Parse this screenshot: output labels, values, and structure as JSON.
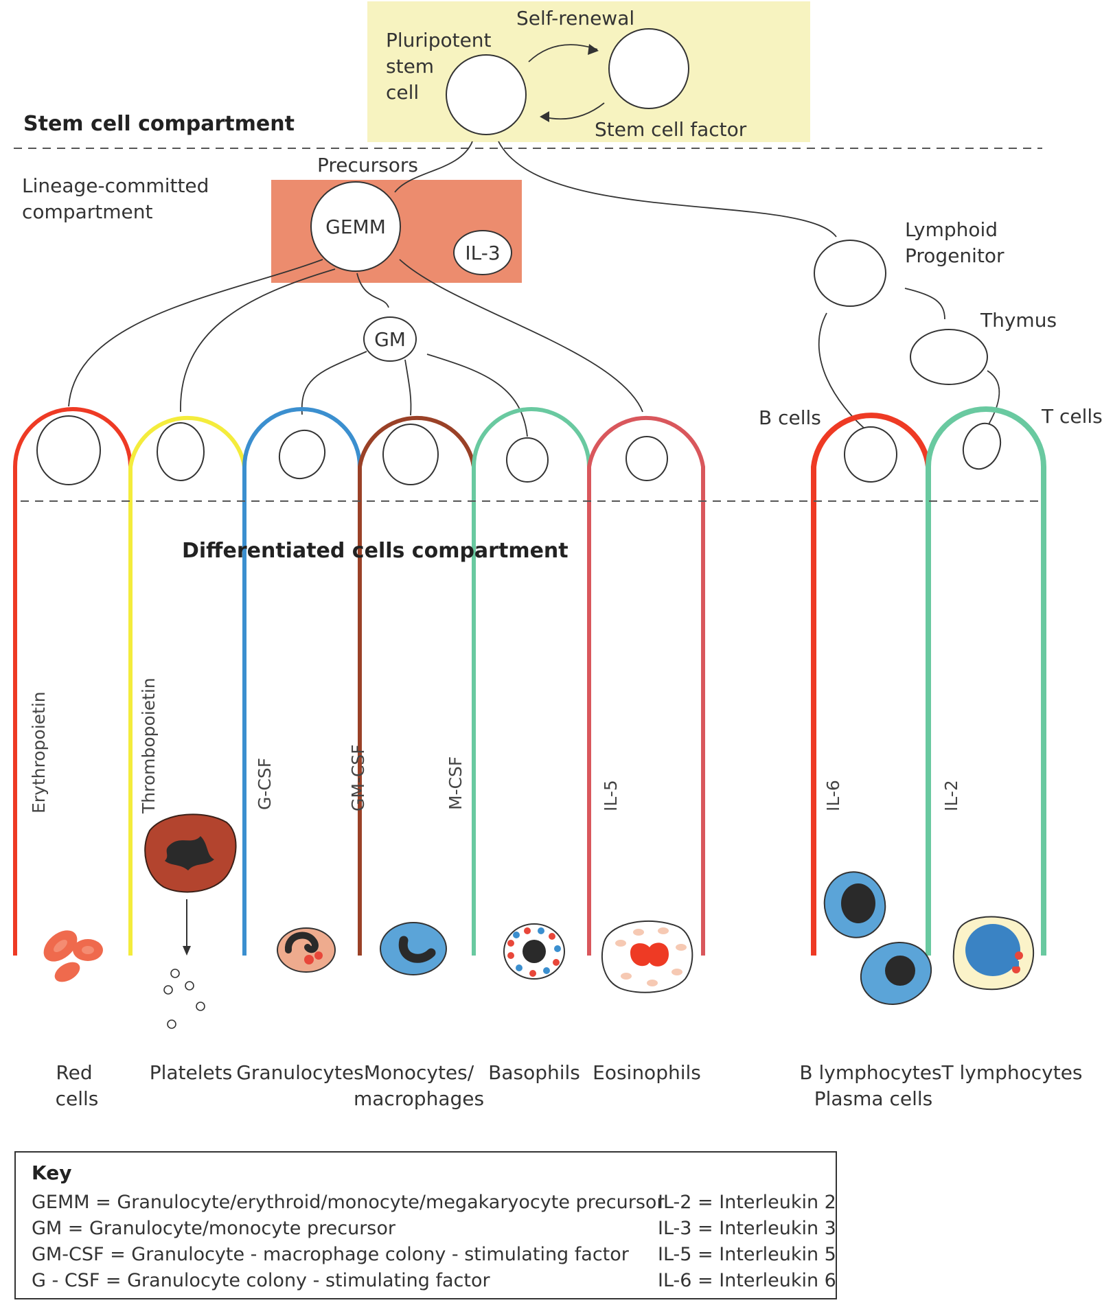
{
  "compartments": {
    "stem": "Stem cell compartment",
    "lineage": [
      "Lineage-committed",
      "compartment"
    ],
    "differentiated": "Differentiated cells compartment"
  },
  "stem_box": {
    "pluripotent": [
      "Pluripotent",
      "stem",
      "cell"
    ],
    "self_renewal": "Self-renewal",
    "stem_cell_factor": "Stem cell factor"
  },
  "precursors": {
    "label": "Precursors",
    "gemm": "GEMM",
    "il3": "IL-3",
    "gm": "GM"
  },
  "lymphoid": {
    "progenitor": [
      "Lymphoid",
      "Progenitor"
    ],
    "thymus": "Thymus",
    "b_cells": "B cells",
    "t_cells": "T cells"
  },
  "factors": [
    "Erythropoietin",
    "Thrombopoietin",
    "G-CSF",
    "GM-CSF",
    "M-CSF",
    "IL-5",
    "IL-6",
    "IL-2"
  ],
  "outputs": {
    "red_cells": [
      "Red",
      "cells"
    ],
    "platelets": "Platelets",
    "granulocytes": "Granulocytes",
    "monocytes": [
      "Monocytes/",
      "macrophages"
    ],
    "basophils": "Basophils",
    "eosinophils": "Eosinophils",
    "b_lymphocytes": [
      "B lymphocytes",
      "Plasma cells"
    ],
    "t_lymphocytes": "T lymphocytes"
  },
  "key": {
    "title": "Key",
    "left": [
      "GEMM = Granulocyte/erythroid/monocyte/megakaryocyte precursor",
      "GM = Granulocyte/monocyte precursor",
      "GM-CSF = Granulocyte - macrophage colony - stimulating factor",
      "G - CSF = Granulocyte colony - stimulating factor"
    ],
    "right": [
      "IL-2 = Interleukin 2",
      "IL-3 = Interleukin 3",
      "IL-5 = Interleukin 5",
      "IL-6 = Interleukin 6"
    ]
  },
  "colors": {
    "stem_box": "#f7f3c0",
    "precursor_box": "#ec8c6e",
    "erythro": "#ee3a24",
    "platelet": "#f4ec3c",
    "granulo": "#3b8fcf",
    "mono": "#9a4127",
    "baso": "#69c9a0",
    "eosino": "#d9575c",
    "b_lineage": "#ee3a24",
    "t_lineage": "#69c9a0"
  }
}
